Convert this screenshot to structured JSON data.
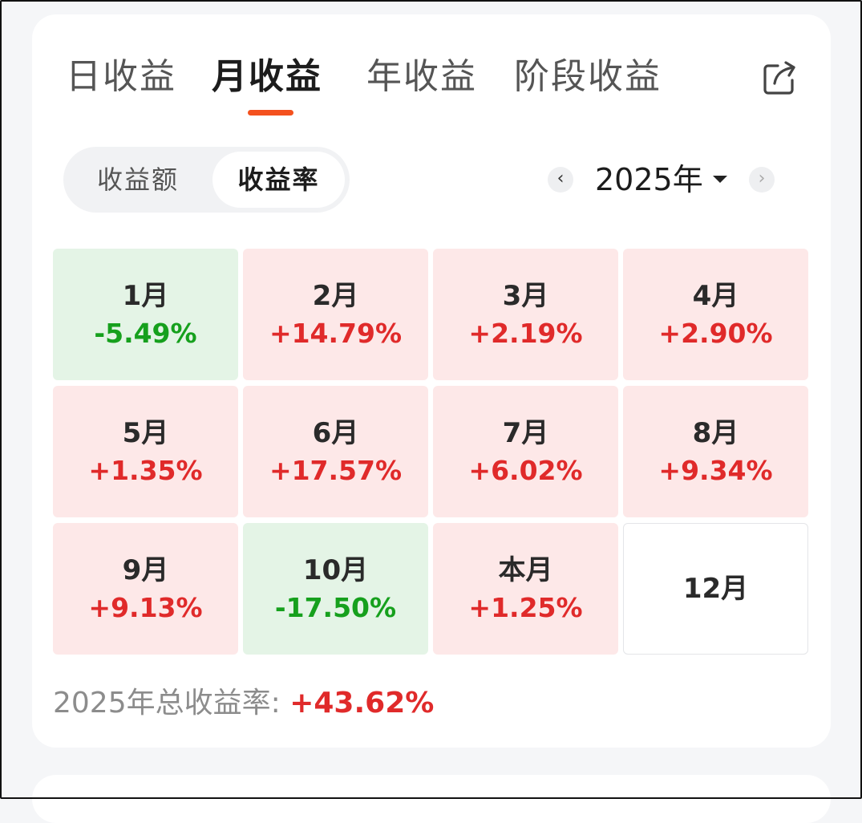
{
  "tabs": [
    {
      "label": "日收益",
      "active": false
    },
    {
      "label": "月收益",
      "active": true
    },
    {
      "label": "年收益",
      "active": false
    },
    {
      "label": "阶段收益",
      "active": false
    }
  ],
  "toggle": {
    "options": [
      "收益额",
      "收益率"
    ],
    "selected": "收益率"
  },
  "year_selector": {
    "prev": "‹",
    "label": "2025年",
    "next": "›"
  },
  "months": [
    {
      "label": "1月",
      "value": "-5.49%",
      "trend": "neg"
    },
    {
      "label": "2月",
      "value": "+14.79%",
      "trend": "pos"
    },
    {
      "label": "3月",
      "value": "+2.19%",
      "trend": "pos"
    },
    {
      "label": "4月",
      "value": "+2.90%",
      "trend": "pos"
    },
    {
      "label": "5月",
      "value": "+1.35%",
      "trend": "pos"
    },
    {
      "label": "6月",
      "value": "+17.57%",
      "trend": "pos"
    },
    {
      "label": "7月",
      "value": "+6.02%",
      "trend": "pos"
    },
    {
      "label": "8月",
      "value": "+9.34%",
      "trend": "pos"
    },
    {
      "label": "9月",
      "value": "+9.13%",
      "trend": "pos"
    },
    {
      "label": "10月",
      "value": "-17.50%",
      "trend": "neg"
    },
    {
      "label": "本月",
      "value": "+1.25%",
      "trend": "pos"
    },
    {
      "label": "12月",
      "value": "",
      "trend": "empty"
    }
  ],
  "total": {
    "label": "2025年总收益率: ",
    "value": "+43.62%"
  },
  "colors": {
    "accent": "#f4511e",
    "positive": "#e02a2a",
    "negative": "#16a01d",
    "positive_bg": "#fde8e8",
    "negative_bg": "#e4f4e6"
  },
  "icons": {
    "share": "share-icon"
  }
}
